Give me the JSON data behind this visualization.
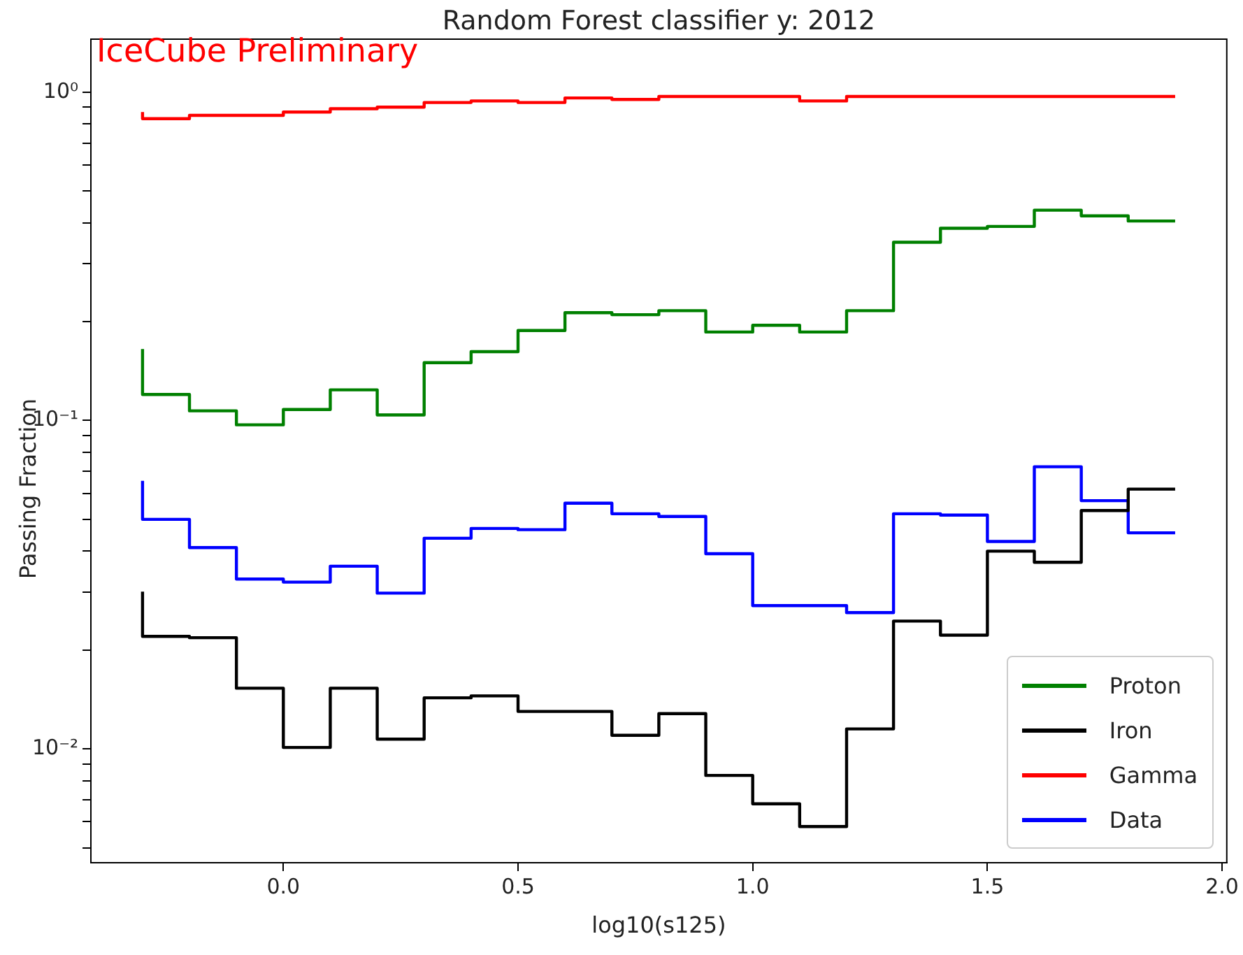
{
  "chart_data": {
    "type": "step",
    "title": "Random Forest classifier y: 2012",
    "xlabel": "log10(s125)",
    "ylabel": "Passing Fraction",
    "annotations": [
      "IceCube Preliminary"
    ],
    "x": [
      -0.3,
      -0.2,
      -0.1,
      0.0,
      0.1,
      0.2,
      0.3,
      0.4,
      0.5,
      0.6,
      0.7,
      0.8,
      0.9,
      1.0,
      1.1,
      1.2,
      1.3,
      1.4,
      1.5,
      1.6,
      1.7,
      1.8,
      1.9
    ],
    "series": [
      {
        "name": "Proton",
        "color": "#008000",
        "values": [
          0.165,
          0.12,
          0.107,
          0.097,
          0.108,
          0.124,
          0.104,
          0.15,
          0.162,
          0.188,
          0.213,
          0.21,
          0.216,
          0.186,
          0.195,
          0.186,
          0.216,
          0.349,
          0.385,
          0.39,
          0.437,
          0.42,
          0.405
        ]
      },
      {
        "name": "Iron",
        "color": "#000000",
        "values": [
          0.0301,
          0.022,
          0.0218,
          0.0153,
          0.0101,
          0.0153,
          0.0107,
          0.0143,
          0.0145,
          0.013,
          0.013,
          0.011,
          0.0128,
          0.0083,
          0.0068,
          0.0058,
          0.0115,
          0.0245,
          0.0222,
          0.04,
          0.037,
          0.0532,
          0.0618
        ]
      },
      {
        "name": "Gamma",
        "color": "#ff0000",
        "values": [
          0.87,
          0.83,
          0.85,
          0.85,
          0.87,
          0.89,
          0.9,
          0.93,
          0.94,
          0.93,
          0.96,
          0.95,
          0.97,
          0.97,
          0.97,
          0.94,
          0.97,
          0.97,
          0.97,
          0.97,
          0.97,
          0.97,
          0.97
        ]
      },
      {
        "name": "Data",
        "color": "#0000ff",
        "values": [
          0.0655,
          0.05,
          0.041,
          0.0329,
          0.0322,
          0.036,
          0.0298,
          0.0438,
          0.0469,
          0.0465,
          0.056,
          0.052,
          0.051,
          0.0393,
          0.0273,
          0.0273,
          0.026,
          0.052,
          0.0515,
          0.0428,
          0.0723,
          0.057,
          0.0455
        ]
      }
    ],
    "log": "y",
    "xlim": [
      -0.41,
      2.01
    ],
    "ylim": [
      0.0045,
      1.45
    ],
    "xticks": [
      {
        "value": 0,
        "label": "0.0"
      },
      {
        "value": 0.5,
        "label": "0.5"
      },
      {
        "value": 1,
        "label": "1.0"
      },
      {
        "value": 1.5,
        "label": "1.5"
      },
      {
        "value": 2,
        "label": "2.0"
      }
    ],
    "yticks": [
      {
        "value": 0.005,
        "label": null
      },
      {
        "value": 0.006,
        "label": null
      },
      {
        "value": 0.007,
        "label": null
      },
      {
        "value": 0.008,
        "label": null
      },
      {
        "value": 0.009,
        "label": null
      },
      {
        "value": 0.01,
        "label": "10⁻²"
      },
      {
        "value": 0.02,
        "label": null
      },
      {
        "value": 0.03,
        "label": null
      },
      {
        "value": 0.04,
        "label": null
      },
      {
        "value": 0.05,
        "label": null
      },
      {
        "value": 0.06,
        "label": null
      },
      {
        "value": 0.07,
        "label": null
      },
      {
        "value": 0.08,
        "label": null
      },
      {
        "value": 0.09,
        "label": null
      },
      {
        "value": 0.1,
        "label": "10⁻¹"
      },
      {
        "value": 0.2,
        "label": null
      },
      {
        "value": 0.3,
        "label": null
      },
      {
        "value": 0.4,
        "label": null
      },
      {
        "value": 0.5,
        "label": null
      },
      {
        "value": 0.6,
        "label": null
      },
      {
        "value": 0.7,
        "label": null
      },
      {
        "value": 0.8,
        "label": null
      },
      {
        "value": 0.9,
        "label": null
      },
      {
        "value": 1,
        "label": "10⁰"
      }
    ],
    "grid": false,
    "legend": "bottom right"
  }
}
